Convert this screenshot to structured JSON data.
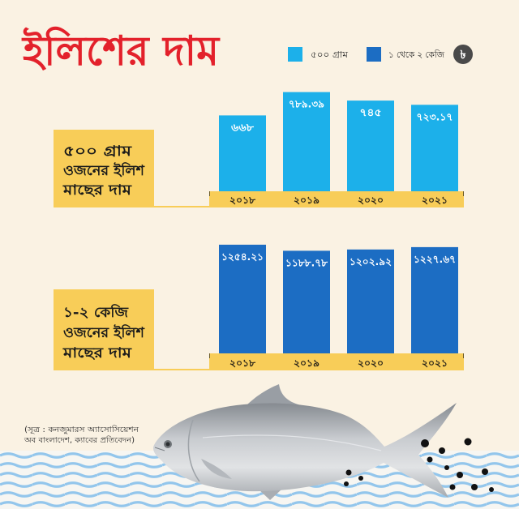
{
  "title": "ইলিশের দাম",
  "colors": {
    "background": "#faf2e3",
    "title": "#e3212b"
  },
  "legend": {
    "items": [
      {
        "label": "৫০০ গ্রাম",
        "color": "#1cb0ea"
      },
      {
        "label": "১ থেকে ২ কেজি",
        "color": "#1c6dc3"
      }
    ],
    "currency_symbol": "৳",
    "currency_icon": "taka-icon",
    "currency_color": "#4a4a4a"
  },
  "chart_data": [
    {
      "type": "bar",
      "title_lines": [
        "৫০০ গ্রাম",
        "ওজনের ইলিশ",
        "মাছের দাম"
      ],
      "categories": [
        "২০১৮",
        "২০১৯",
        "২০২০",
        "২০২১"
      ],
      "values": [
        668,
        789.39,
        745,
        723.17
      ],
      "value_labels": [
        "৬৬৮",
        "৭৮৯.৩৯",
        "৭৪৫",
        "৭২৩.১৭"
      ],
      "color": "#1cb0ea",
      "label_color": "#f8cd58"
    },
    {
      "type": "bar",
      "title_lines": [
        "১-২ কেজি",
        "ওজনের ইলিশ",
        "মাছের দাম"
      ],
      "categories": [
        "২০১৮",
        "২০১৯",
        "২০২০",
        "২০২১"
      ],
      "values": [
        1254.21,
        1188.78,
        1202.92,
        1227.67
      ],
      "value_labels": [
        "১২৫৪.২১",
        "১১৮৮.৭৮",
        "১২০২.৯২",
        "১২২৭.৬৭"
      ],
      "color": "#1c6dc3",
      "label_color": "#f8cd58"
    }
  ],
  "source_note": [
    "(সূত্র : কনজুমারস অ্যাসোসিয়েশন",
    "অব বাংলাদেশ, ক্যাবের প্রতিবেদন)"
  ],
  "illustration": {
    "icon": "hilsa-fish-icon"
  }
}
